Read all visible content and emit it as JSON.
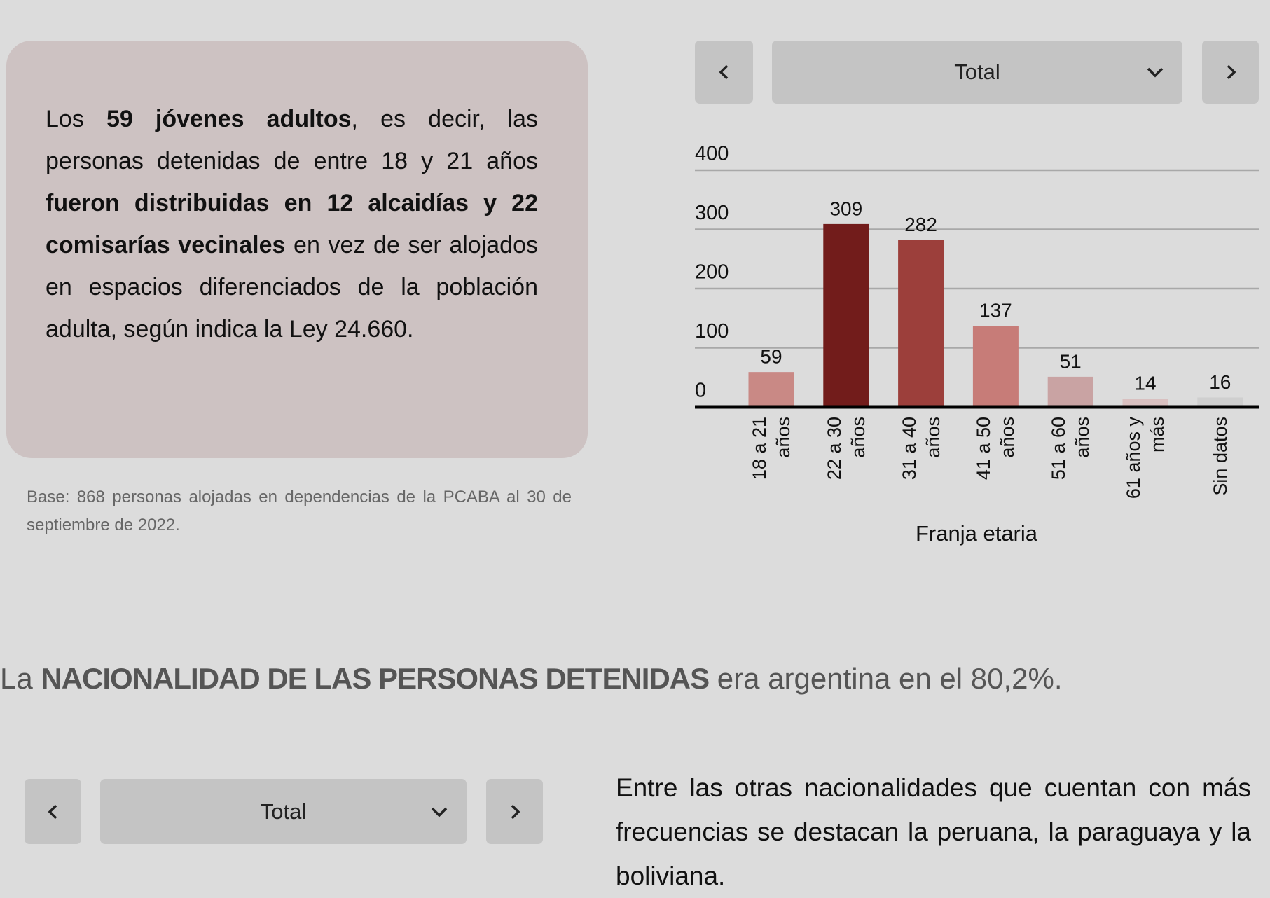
{
  "left_panel": {
    "paragraph": [
      {
        "text": "Los ",
        "bold": false
      },
      {
        "text": "59 jóvenes adultos",
        "bold": true
      },
      {
        "text": ", es decir, las personas detenidas de entre 18 y 21 años ",
        "bold": false
      },
      {
        "text": "fueron distribuidas en 12 alcaidías y  22 comisarías vecinales",
        "bold": true
      },
      {
        "text": " en vez de ser alojados en espacios diferenciados de la población adulta, según indica la Ley 24.660.",
        "bold": false
      }
    ],
    "note": "Base: 868 personas alojadas en dependencias de la PCABA al 30 de septiembre de 2022."
  },
  "chart_controls": {
    "selected": "Total"
  },
  "chart_data": {
    "type": "bar",
    "categories": [
      "18 a 21 años",
      "22 a 30 años",
      "31 a 40 años",
      "41 a 50 años",
      "51 a 60 años",
      "61 años y más",
      "Sin datos"
    ],
    "values": [
      59,
      309,
      282,
      137,
      51,
      14,
      16
    ],
    "colors": [
      "#c98985",
      "#721c1b",
      "#9c3f3b",
      "#c77c78",
      "#c9a3a3",
      "#d9c0c0",
      "#cfcfcf"
    ],
    "ylim": [
      0,
      400
    ],
    "yticks": [
      0,
      100,
      200,
      300,
      400
    ],
    "grid": true,
    "xlabel": "Franja etaria"
  },
  "section_heading": [
    {
      "text": "La ",
      "bold": false
    },
    {
      "text": "NACIONALIDAD DE LAS PERSONAS DETENIDAS",
      "bold": true
    },
    {
      "text": " era argentina en el 80,2%.",
      "bold": false
    }
  ],
  "bottom_controls": {
    "selected": "Total"
  },
  "bottom_paragraph": "Entre las otras nacionalidades que cuentan con más frecuencias se destacan la peruana, la paraguaya y la boliviana."
}
